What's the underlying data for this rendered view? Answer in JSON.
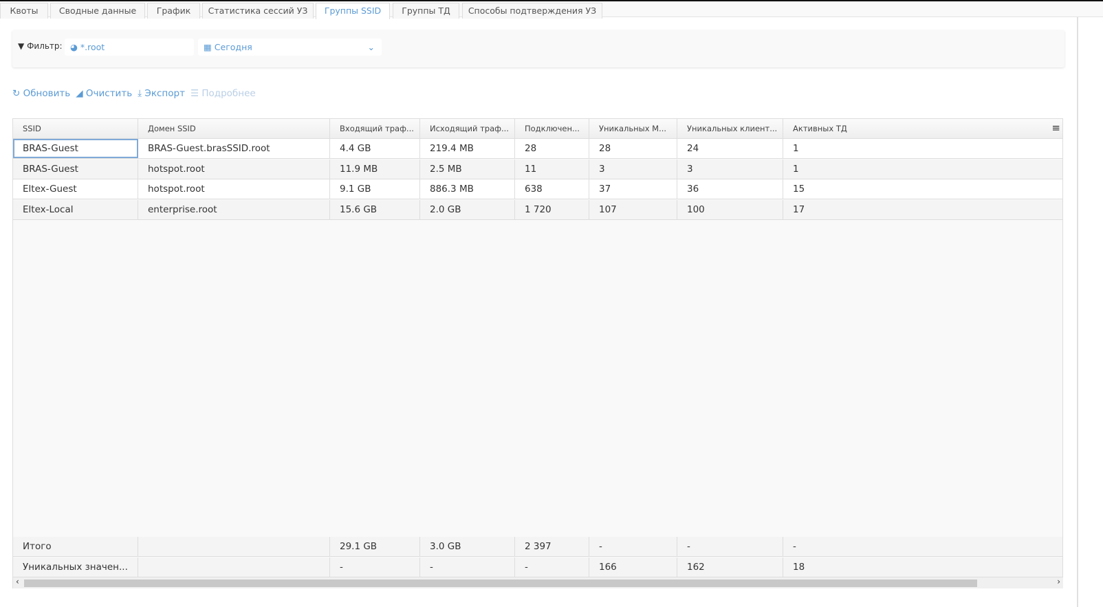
{
  "tabs": [
    {
      "label": "Квоты"
    },
    {
      "label": "Сводные данные"
    },
    {
      "label": "График"
    },
    {
      "label": "Статистика сессий УЗ"
    },
    {
      "label": "Группы SSID",
      "active": true
    },
    {
      "label": "Группы ТД"
    },
    {
      "label": "Способы подтверждения УЗ"
    }
  ],
  "filter": {
    "label": "Фильтр:",
    "domain": "*.root",
    "period": "Сегодня"
  },
  "toolbar": {
    "refresh": "Обновить",
    "clear": "Очистить",
    "export": "Экспорт",
    "details": "Подробнее"
  },
  "accent": "#5b9bd5",
  "table": {
    "columns": [
      "SSID",
      "Домен SSID",
      "Входящий траф...",
      "Исходящий траф...",
      "Подключен...",
      "Уникальных М...",
      "Уникальных клиент...",
      "Активных ТД"
    ],
    "rows": [
      [
        "BRAS-Guest",
        "BRAS-Guest.brasSSID.root",
        "4.4 GB",
        "219.4 MB",
        "28",
        "28",
        "24",
        "1"
      ],
      [
        "BRAS-Guest",
        "hotspot.root",
        "11.9 MB",
        "2.5 MB",
        "11",
        "3",
        "3",
        "1"
      ],
      [
        "Eltex-Guest",
        "hotspot.root",
        "9.1 GB",
        "886.3 MB",
        "638",
        "37",
        "36",
        "15"
      ],
      [
        "Eltex-Local",
        "enterprise.root",
        "15.6 GB",
        "2.0 GB",
        "1 720",
        "107",
        "100",
        "17"
      ]
    ],
    "footer": [
      [
        "Итого",
        "",
        "29.1 GB",
        "3.0 GB",
        "2 397",
        "-",
        "-",
        "-"
      ],
      [
        "Уникальных значен...",
        "",
        "-",
        "-",
        "-",
        "166",
        "162",
        "18"
      ]
    ]
  }
}
